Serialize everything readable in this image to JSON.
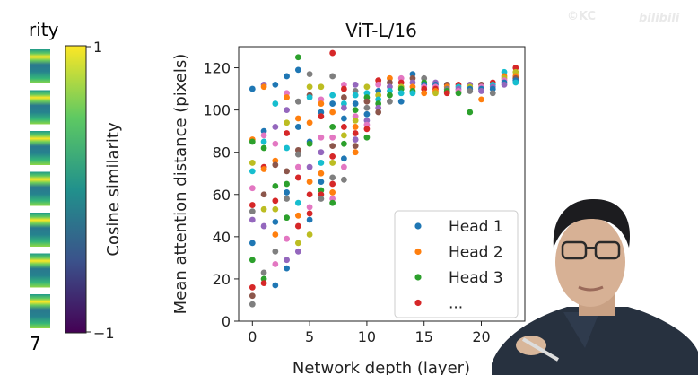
{
  "left_panel": {
    "cut_title": "rity",
    "cut_axis_label": "7",
    "colorbar": {
      "label": "Cosine similarity",
      "max_label": "1",
      "min_label": "−1",
      "colors": [
        "#440154",
        "#3b528b",
        "#21918c",
        "#5ec962",
        "#fde725"
      ]
    }
  },
  "watermark": {
    "text": "bilibili",
    "prefix": "©KC"
  },
  "chart_data": {
    "type": "scatter",
    "title": "ViT-L/16",
    "xlabel": "Network depth (layer)",
    "ylabel": "Mean attention distance (pixels)",
    "xlim": [
      -1.2,
      23.8
    ],
    "ylim": [
      0,
      130
    ],
    "xticks": [
      0,
      5,
      10,
      15,
      20
    ],
    "yticks": [
      0,
      20,
      40,
      60,
      80,
      100,
      120
    ],
    "legend": {
      "position": "bottom-right",
      "entries": [
        {
          "label": "Head 1",
          "color": "#1f77b4"
        },
        {
          "label": "Head 2",
          "color": "#ff7f0e"
        },
        {
          "label": "Head 3",
          "color": "#2ca02c"
        },
        {
          "label": "...",
          "color": "#d62728"
        }
      ]
    },
    "palette": [
      "#1f77b4",
      "#ff7f0e",
      "#2ca02c",
      "#d62728",
      "#9467bd",
      "#8c564b",
      "#e377c2",
      "#7f7f7f",
      "#bcbd22",
      "#17becf"
    ],
    "points": [
      [
        0,
        110,
        0
      ],
      [
        0,
        86,
        1
      ],
      [
        0,
        85,
        2
      ],
      [
        0,
        55,
        3
      ],
      [
        0,
        48,
        4
      ],
      [
        0,
        8,
        7
      ],
      [
        0,
        37,
        0
      ],
      [
        0,
        75,
        8
      ],
      [
        0,
        63,
        6
      ],
      [
        0,
        29,
        2
      ],
      [
        0,
        16,
        3
      ],
      [
        0,
        12,
        5
      ],
      [
        0,
        71,
        9
      ],
      [
        0,
        52,
        7
      ],
      [
        1,
        112,
        4
      ],
      [
        1,
        111,
        1
      ],
      [
        1,
        90,
        0
      ],
      [
        1,
        88,
        6
      ],
      [
        1,
        85,
        9
      ],
      [
        1,
        82,
        2
      ],
      [
        1,
        73,
        3
      ],
      [
        1,
        72,
        1
      ],
      [
        1,
        60,
        5
      ],
      [
        1,
        53,
        8
      ],
      [
        1,
        45,
        4
      ],
      [
        1,
        23,
        7
      ],
      [
        1,
        20,
        2
      ],
      [
        1,
        18,
        3
      ],
      [
        2,
        112,
        0
      ],
      [
        2,
        103,
        9
      ],
      [
        2,
        92,
        4
      ],
      [
        2,
        84,
        6
      ],
      [
        2,
        76,
        1
      ],
      [
        2,
        74,
        5
      ],
      [
        2,
        64,
        2
      ],
      [
        2,
        57,
        3
      ],
      [
        2,
        53,
        8
      ],
      [
        2,
        47,
        0
      ],
      [
        2,
        41,
        1
      ],
      [
        2,
        17,
        0
      ],
      [
        2,
        33,
        7
      ],
      [
        2,
        27,
        6
      ],
      [
        3,
        116,
        0
      ],
      [
        3,
        108,
        6
      ],
      [
        3,
        106,
        1
      ],
      [
        3,
        100,
        4
      ],
      [
        3,
        94,
        8
      ],
      [
        3,
        89,
        3
      ],
      [
        3,
        82,
        9
      ],
      [
        3,
        71,
        5
      ],
      [
        3,
        65,
        2
      ],
      [
        3,
        61,
        0
      ],
      [
        3,
        58,
        7
      ],
      [
        3,
        49,
        2
      ],
      [
        3,
        39,
        6
      ],
      [
        3,
        29,
        4
      ],
      [
        3,
        25,
        0
      ],
      [
        4,
        125,
        2
      ],
      [
        4,
        119,
        0
      ],
      [
        4,
        104,
        7
      ],
      [
        4,
        96,
        1
      ],
      [
        4,
        92,
        0
      ],
      [
        4,
        81,
        5
      ],
      [
        4,
        79,
        7
      ],
      [
        4,
        73,
        6
      ],
      [
        4,
        68,
        3
      ],
      [
        4,
        56,
        9
      ],
      [
        4,
        50,
        1
      ],
      [
        4,
        45,
        3
      ],
      [
        4,
        37,
        8
      ],
      [
        4,
        33,
        4
      ],
      [
        5,
        117,
        7
      ],
      [
        5,
        111,
        8
      ],
      [
        5,
        107,
        5
      ],
      [
        5,
        106,
        9
      ],
      [
        5,
        94,
        1
      ],
      [
        5,
        85,
        0
      ],
      [
        5,
        84,
        2
      ],
      [
        5,
        73,
        4
      ],
      [
        5,
        66,
        1
      ],
      [
        5,
        60,
        3
      ],
      [
        5,
        54,
        6
      ],
      [
        5,
        51,
        3
      ],
      [
        5,
        48,
        0
      ],
      [
        5,
        41,
        8
      ],
      [
        6,
        111,
        8
      ],
      [
        6,
        105,
        6
      ],
      [
        6,
        103,
        1
      ],
      [
        6,
        99,
        0
      ],
      [
        6,
        97,
        3
      ],
      [
        6,
        87,
        6
      ],
      [
        6,
        80,
        4
      ],
      [
        6,
        75,
        9
      ],
      [
        6,
        70,
        1
      ],
      [
        6,
        66,
        0
      ],
      [
        6,
        62,
        2
      ],
      [
        6,
        60,
        3
      ],
      [
        6,
        58,
        7
      ],
      [
        7,
        127,
        3
      ],
      [
        7,
        116,
        7
      ],
      [
        7,
        107,
        9
      ],
      [
        7,
        103,
        0
      ],
      [
        7,
        99,
        1
      ],
      [
        7,
        92,
        2
      ],
      [
        7,
        87,
        6
      ],
      [
        7,
        83,
        5
      ],
      [
        7,
        78,
        3
      ],
      [
        7,
        75,
        8
      ],
      [
        7,
        68,
        7
      ],
      [
        7,
        65,
        3
      ],
      [
        7,
        61,
        1
      ],
      [
        7,
        58,
        6
      ],
      [
        7,
        56,
        2
      ],
      [
        8,
        112,
        6
      ],
      [
        8,
        110,
        3
      ],
      [
        8,
        106,
        5
      ],
      [
        8,
        103,
        9
      ],
      [
        8,
        101,
        4
      ],
      [
        8,
        96,
        0
      ],
      [
        8,
        92,
        3
      ],
      [
        8,
        88,
        8
      ],
      [
        8,
        84,
        2
      ],
      [
        8,
        77,
        0
      ],
      [
        8,
        73,
        6
      ],
      [
        8,
        67,
        7
      ],
      [
        9,
        112,
        4
      ],
      [
        9,
        109,
        7
      ],
      [
        9,
        107,
        9
      ],
      [
        9,
        103,
        0
      ],
      [
        9,
        100,
        2
      ],
      [
        9,
        97,
        6
      ],
      [
        9,
        95,
        8
      ],
      [
        9,
        92,
        1
      ],
      [
        9,
        89,
        3
      ],
      [
        9,
        86,
        4
      ],
      [
        9,
        83,
        5
      ],
      [
        9,
        80,
        1
      ],
      [
        10,
        111,
        8
      ],
      [
        10,
        108,
        9
      ],
      [
        10,
        106,
        2
      ],
      [
        10,
        104,
        5
      ],
      [
        10,
        101,
        7
      ],
      [
        10,
        98,
        0
      ],
      [
        10,
        95,
        4
      ],
      [
        10,
        93,
        6
      ],
      [
        10,
        91,
        3
      ],
      [
        10,
        87,
        2
      ],
      [
        11,
        114,
        3
      ],
      [
        11,
        112,
        6
      ],
      [
        11,
        109,
        0
      ],
      [
        11,
        107,
        8
      ],
      [
        11,
        105,
        9
      ],
      [
        11,
        103,
        2
      ],
      [
        11,
        101,
        4
      ],
      [
        11,
        99,
        5
      ],
      [
        12,
        115,
        1
      ],
      [
        12,
        113,
        5
      ],
      [
        12,
        111,
        4
      ],
      [
        12,
        109,
        9
      ],
      [
        12,
        107,
        2
      ],
      [
        12,
        104,
        7
      ],
      [
        13,
        115,
        6
      ],
      [
        13,
        113,
        3
      ],
      [
        13,
        111,
        8
      ],
      [
        13,
        110,
        2
      ],
      [
        13,
        108,
        9
      ],
      [
        13,
        104,
        0
      ],
      [
        14,
        117,
        0
      ],
      [
        14,
        115,
        5
      ],
      [
        14,
        113,
        4
      ],
      [
        14,
        111,
        1
      ],
      [
        14,
        109,
        2
      ],
      [
        14,
        108,
        9
      ],
      [
        15,
        115,
        7
      ],
      [
        15,
        113,
        2
      ],
      [
        15,
        112,
        0
      ],
      [
        15,
        111,
        6
      ],
      [
        15,
        110,
        3
      ],
      [
        15,
        108,
        1
      ],
      [
        16,
        113,
        4
      ],
      [
        16,
        112,
        0
      ],
      [
        16,
        111,
        6
      ],
      [
        16,
        110,
        3
      ],
      [
        16,
        109,
        1
      ],
      [
        16,
        108,
        8
      ],
      [
        17,
        112,
        5
      ],
      [
        17,
        111,
        1
      ],
      [
        17,
        110,
        7
      ],
      [
        17,
        109,
        2
      ],
      [
        17,
        108,
        3
      ],
      [
        18,
        112,
        3
      ],
      [
        18,
        111,
        9
      ],
      [
        18,
        110,
        4
      ],
      [
        18,
        109,
        6
      ],
      [
        18,
        108,
        2
      ],
      [
        19,
        112,
        4
      ],
      [
        19,
        111,
        8
      ],
      [
        19,
        110,
        0
      ],
      [
        19,
        109,
        7
      ],
      [
        19,
        99,
        2
      ],
      [
        20,
        112,
        5
      ],
      [
        20,
        111,
        6
      ],
      [
        20,
        110,
        0
      ],
      [
        20,
        109,
        4
      ],
      [
        20,
        105,
        1
      ],
      [
        21,
        113,
        3
      ],
      [
        21,
        112,
        9
      ],
      [
        21,
        111,
        4
      ],
      [
        21,
        110,
        0
      ],
      [
        21,
        108,
        7
      ],
      [
        22,
        118,
        9
      ],
      [
        22,
        116,
        1
      ],
      [
        22,
        115,
        8
      ],
      [
        22,
        114,
        6
      ],
      [
        22,
        113,
        0
      ],
      [
        22,
        112,
        4
      ],
      [
        23,
        120,
        3
      ],
      [
        23,
        118,
        8
      ],
      [
        23,
        116,
        1
      ],
      [
        23,
        115,
        5
      ],
      [
        23,
        114,
        0
      ],
      [
        23,
        113,
        9
      ]
    ]
  }
}
